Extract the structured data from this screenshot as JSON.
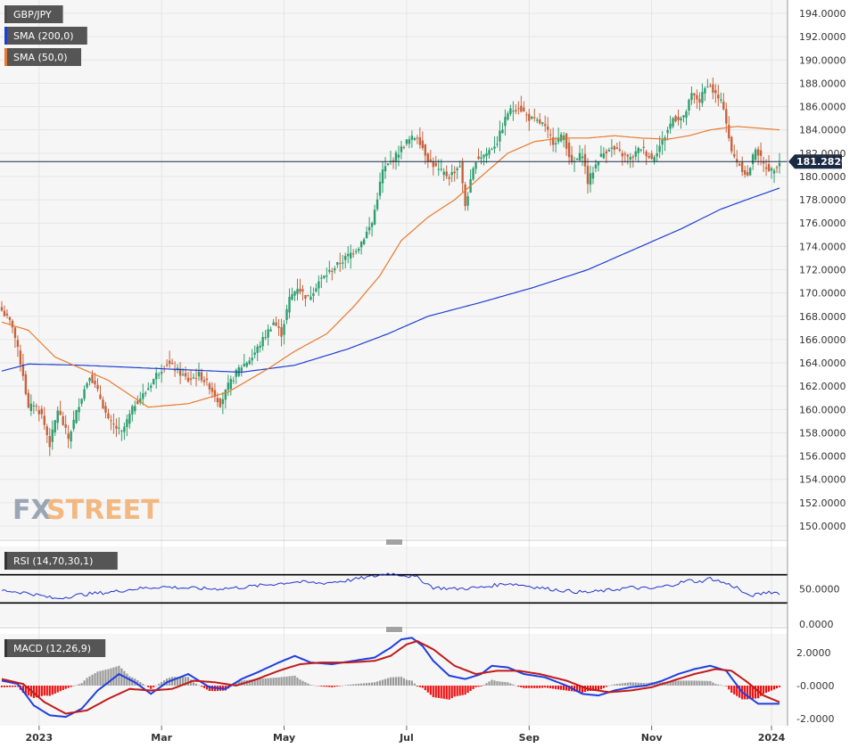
{
  "brand": {
    "part1": "FX",
    "part2": "STREET"
  },
  "chart_data": [
    {
      "type": "candlestick",
      "name": "main-price-chart",
      "legend": [
        {
          "label": "GBP/JPY",
          "color": "#4b4b4b"
        },
        {
          "label": "SMA (200,0)",
          "color": "#1f3fd1"
        },
        {
          "label": "SMA (50,0)",
          "color": "#e87a2e"
        }
      ],
      "ylim": [
        148.5,
        195.5
      ],
      "yticks": [
        "194.0000",
        "192.0000",
        "190.0000",
        "188.0000",
        "186.0000",
        "184.0000",
        "182.0000",
        "180.0000",
        "178.0000",
        "176.0000",
        "174.0000",
        "172.0000",
        "170.0000",
        "168.0000",
        "166.0000",
        "164.0000",
        "162.0000",
        "160.0000",
        "158.0000",
        "156.0000",
        "154.0000",
        "152.0000",
        "150.0000"
      ],
      "last_price": {
        "label": "181.2820",
        "value": 181.282
      },
      "close_anchors": [
        [
          0,
          168.5
        ],
        [
          4,
          167.2
        ],
        [
          8,
          163.0
        ],
        [
          10,
          160.0
        ],
        [
          12,
          160.5
        ],
        [
          15,
          159.5
        ],
        [
          18,
          157.0
        ],
        [
          21,
          160.0
        ],
        [
          25,
          157.5
        ],
        [
          29,
          160.5
        ],
        [
          33,
          163.0
        ],
        [
          37,
          161.0
        ],
        [
          40,
          159.0
        ],
        [
          45,
          158.0
        ],
        [
          50,
          160.5
        ],
        [
          54,
          161.5
        ],
        [
          58,
          163.0
        ],
        [
          62,
          164.0
        ],
        [
          65,
          163.5
        ],
        [
          70,
          162.5
        ],
        [
          74,
          163.0
        ],
        [
          78,
          162.0
        ],
        [
          82,
          160.5
        ],
        [
          85,
          162.0
        ],
        [
          89,
          163.5
        ],
        [
          94,
          164.5
        ],
        [
          98,
          166.0
        ],
        [
          102,
          167.5
        ],
        [
          105,
          166.5
        ],
        [
          108,
          169.5
        ],
        [
          111,
          170.5
        ],
        [
          115,
          169.5
        ],
        [
          119,
          171.0
        ],
        [
          124,
          172.0
        ],
        [
          129,
          173.0
        ],
        [
          134,
          174.0
        ],
        [
          139,
          176.0
        ],
        [
          143,
          180.5
        ],
        [
          147,
          181.5
        ],
        [
          152,
          183.0
        ],
        [
          156,
          183.5
        ],
        [
          160,
          181.5
        ],
        [
          164,
          180.5
        ],
        [
          168,
          180.0
        ],
        [
          172,
          181.0
        ],
        [
          174,
          177.5
        ],
        [
          178,
          181.5
        ],
        [
          182,
          182.0
        ],
        [
          186,
          183.0
        ],
        [
          190,
          185.5
        ],
        [
          194,
          186.0
        ],
        [
          198,
          185.0
        ],
        [
          203,
          184.5
        ],
        [
          207,
          183.0
        ],
        [
          211,
          183.5
        ],
        [
          214,
          181.0
        ],
        [
          218,
          182.0
        ],
        [
          220,
          179.5
        ],
        [
          224,
          181.5
        ],
        [
          228,
          182.5
        ],
        [
          232,
          182.0
        ],
        [
          236,
          181.5
        ],
        [
          240,
          182.5
        ],
        [
          244,
          181.5
        ],
        [
          248,
          183.0
        ],
        [
          252,
          185.0
        ],
        [
          256,
          185.0
        ],
        [
          259,
          187.0
        ],
        [
          262,
          186.5
        ],
        [
          265,
          188.0
        ],
        [
          268,
          187.0
        ],
        [
          271,
          186.0
        ],
        [
          274,
          182.0
        ],
        [
          277,
          181.0
        ],
        [
          280,
          180.0
        ],
        [
          283,
          182.5
        ],
        [
          286,
          181.0
        ],
        [
          289,
          180.5
        ],
        [
          292,
          181.3
        ]
      ],
      "sma200_anchors": [
        [
          0,
          163.3
        ],
        [
          10,
          163.9
        ],
        [
          30,
          163.8
        ],
        [
          60,
          163.5
        ],
        [
          90,
          163.2
        ],
        [
          110,
          163.8
        ],
        [
          130,
          165.2
        ],
        [
          145,
          166.5
        ],
        [
          160,
          168.0
        ],
        [
          180,
          169.2
        ],
        [
          200,
          170.5
        ],
        [
          220,
          172.0
        ],
        [
          240,
          174.0
        ],
        [
          255,
          175.5
        ],
        [
          270,
          177.2
        ],
        [
          282,
          178.2
        ],
        [
          292,
          179.0
        ]
      ],
      "sma50_anchors": [
        [
          0,
          167.5
        ],
        [
          10,
          166.8
        ],
        [
          20,
          164.5
        ],
        [
          30,
          163.5
        ],
        [
          40,
          162.5
        ],
        [
          55,
          160.2
        ],
        [
          70,
          160.5
        ],
        [
          85,
          161.5
        ],
        [
          100,
          163.5
        ],
        [
          110,
          165.0
        ],
        [
          122,
          166.5
        ],
        [
          132,
          168.8
        ],
        [
          142,
          171.5
        ],
        [
          150,
          174.5
        ],
        [
          160,
          176.5
        ],
        [
          170,
          178.0
        ],
        [
          180,
          180.0
        ],
        [
          190,
          182.0
        ],
        [
          200,
          183.0
        ],
        [
          210,
          183.3
        ],
        [
          220,
          183.3
        ],
        [
          230,
          183.5
        ],
        [
          240,
          183.3
        ],
        [
          250,
          183.2
        ],
        [
          258,
          183.5
        ],
        [
          266,
          184.0
        ],
        [
          276,
          184.3
        ],
        [
          292,
          184.0
        ]
      ]
    },
    {
      "type": "line",
      "name": "rsi-panel",
      "legend": [
        {
          "label": "RSI (14,70,30,1)",
          "color": "#333333"
        }
      ],
      "ylim": [
        0,
        100
      ],
      "yticks": [
        "50.0000",
        "0.0000"
      ],
      "levels": [
        70,
        30
      ],
      "anchors": [
        [
          0,
          48
        ],
        [
          10,
          44
        ],
        [
          20,
          36
        ],
        [
          30,
          42
        ],
        [
          40,
          45
        ],
        [
          50,
          50
        ],
        [
          60,
          53
        ],
        [
          70,
          51
        ],
        [
          80,
          50
        ],
        [
          90,
          52
        ],
        [
          100,
          56
        ],
        [
          110,
          60
        ],
        [
          120,
          58
        ],
        [
          130,
          62
        ],
        [
          140,
          68
        ],
        [
          145,
          72
        ],
        [
          150,
          70
        ],
        [
          156,
          66
        ],
        [
          162,
          52
        ],
        [
          170,
          50
        ],
        [
          180,
          52
        ],
        [
          190,
          58
        ],
        [
          196,
          55
        ],
        [
          205,
          50
        ],
        [
          215,
          46
        ],
        [
          220,
          45
        ],
        [
          228,
          48
        ],
        [
          236,
          52
        ],
        [
          244,
          50
        ],
        [
          252,
          56
        ],
        [
          258,
          62
        ],
        [
          262,
          60
        ],
        [
          266,
          65
        ],
        [
          270,
          60
        ],
        [
          276,
          52
        ],
        [
          280,
          40
        ],
        [
          284,
          42
        ],
        [
          288,
          46
        ],
        [
          292,
          44
        ]
      ]
    },
    {
      "type": "line",
      "name": "macd-panel",
      "legend": [
        {
          "label": "MACD (12,26,9)",
          "color": "#333333"
        }
      ],
      "ylim": [
        -2.8,
        3.3
      ],
      "yticks": [
        "2.0000",
        "-0.0000",
        "-2.0000"
      ],
      "macd_anchors": [
        [
          0,
          0.3
        ],
        [
          6,
          0.1
        ],
        [
          12,
          -1.2
        ],
        [
          18,
          -1.8
        ],
        [
          24,
          -1.9
        ],
        [
          30,
          -1.4
        ],
        [
          36,
          -0.3
        ],
        [
          44,
          0.7
        ],
        [
          50,
          0.2
        ],
        [
          56,
          -0.5
        ],
        [
          62,
          0.2
        ],
        [
          70,
          0.7
        ],
        [
          78,
          -0.1
        ],
        [
          84,
          -0.2
        ],
        [
          90,
          0.4
        ],
        [
          96,
          0.8
        ],
        [
          104,
          1.4
        ],
        [
          110,
          1.8
        ],
        [
          116,
          1.4
        ],
        [
          124,
          1.3
        ],
        [
          132,
          1.5
        ],
        [
          140,
          1.7
        ],
        [
          146,
          2.3
        ],
        [
          150,
          2.8
        ],
        [
          154,
          2.9
        ],
        [
          158,
          2.4
        ],
        [
          162,
          1.5
        ],
        [
          168,
          0.6
        ],
        [
          174,
          0.4
        ],
        [
          180,
          0.7
        ],
        [
          184,
          1.2
        ],
        [
          190,
          1.1
        ],
        [
          196,
          0.7
        ],
        [
          204,
          0.5
        ],
        [
          212,
          0.0
        ],
        [
          218,
          -0.5
        ],
        [
          224,
          -0.6
        ],
        [
          230,
          -0.3
        ],
        [
          236,
          -0.1
        ],
        [
          242,
          0.0
        ],
        [
          248,
          0.3
        ],
        [
          254,
          0.7
        ],
        [
          260,
          1.0
        ],
        [
          266,
          1.2
        ],
        [
          272,
          0.9
        ],
        [
          278,
          -0.4
        ],
        [
          284,
          -1.1
        ],
        [
          292,
          -1.1
        ]
      ],
      "signal_anchors": [
        [
          0,
          0.4
        ],
        [
          8,
          0.1
        ],
        [
          16,
          -1.0
        ],
        [
          24,
          -1.7
        ],
        [
          32,
          -1.5
        ],
        [
          40,
          -0.8
        ],
        [
          48,
          -0.2
        ],
        [
          56,
          -0.3
        ],
        [
          64,
          -0.2
        ],
        [
          72,
          0.3
        ],
        [
          80,
          0.2
        ],
        [
          88,
          0.0
        ],
        [
          96,
          0.4
        ],
        [
          104,
          0.9
        ],
        [
          112,
          1.3
        ],
        [
          120,
          1.4
        ],
        [
          130,
          1.4
        ],
        [
          140,
          1.5
        ],
        [
          146,
          1.8
        ],
        [
          152,
          2.5
        ],
        [
          156,
          2.7
        ],
        [
          162,
          2.2
        ],
        [
          170,
          1.2
        ],
        [
          178,
          0.7
        ],
        [
          186,
          0.9
        ],
        [
          194,
          0.9
        ],
        [
          202,
          0.7
        ],
        [
          212,
          0.3
        ],
        [
          220,
          -0.2
        ],
        [
          228,
          -0.4
        ],
        [
          236,
          -0.3
        ],
        [
          244,
          -0.1
        ],
        [
          252,
          0.3
        ],
        [
          260,
          0.7
        ],
        [
          268,
          1.0
        ],
        [
          274,
          0.9
        ],
        [
          280,
          0.2
        ],
        [
          286,
          -0.6
        ],
        [
          292,
          -1.0
        ]
      ]
    }
  ],
  "x_labels": [
    {
      "label": "2023",
      "index": 14
    },
    {
      "label": "Mar",
      "index": 60
    },
    {
      "label": "May",
      "index": 106
    },
    {
      "label": "Jul",
      "index": 152
    },
    {
      "label": "Sep",
      "index": 198
    },
    {
      "label": "Nov",
      "index": 244
    },
    {
      "label": "2024",
      "index": 289
    }
  ],
  "colors": {
    "up": "#2e9e6e",
    "down": "#c8623d",
    "sma200": "#1f3fd1",
    "sma50": "#e87a2e",
    "rsi": "#2233cc",
    "macd": "#1f3fe0",
    "signal": "#c11a1a",
    "hist_pos": "#999999",
    "hist_neg": "#ee1111",
    "price_tag": "#1a2a44",
    "grid": "#e5e5e5",
    "panel_bg": "#f6f6f6"
  }
}
